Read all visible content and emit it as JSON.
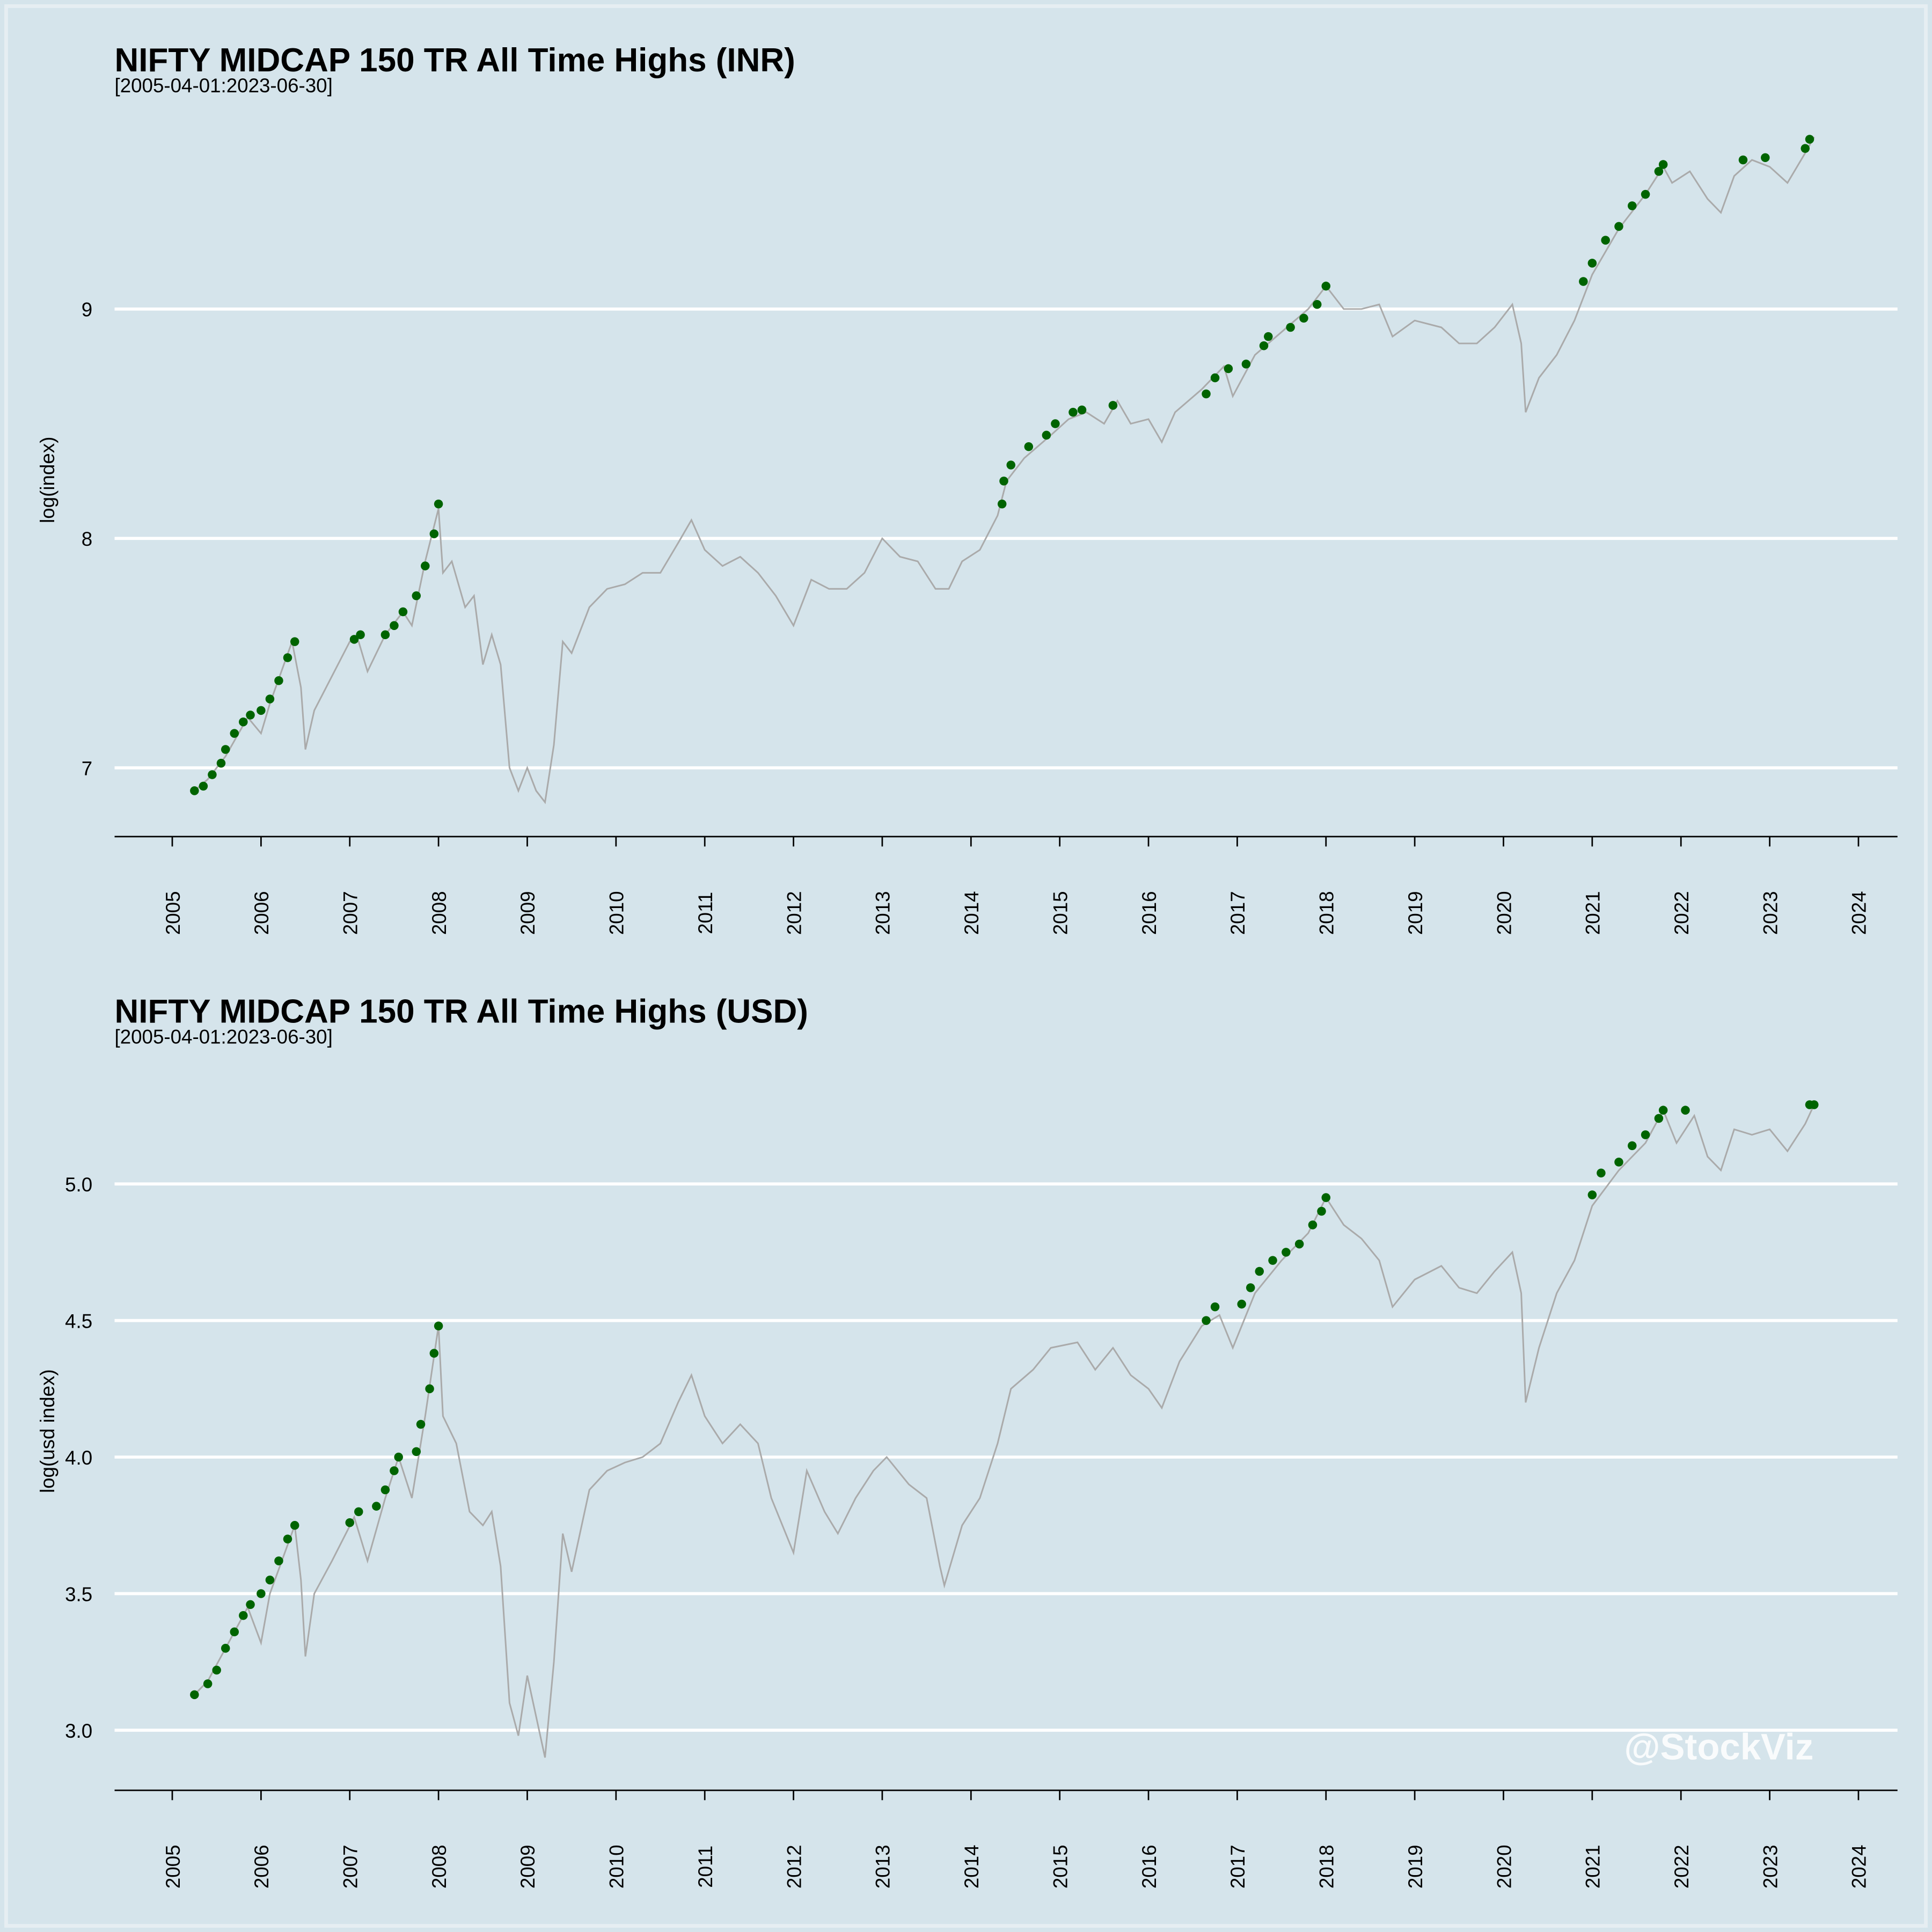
{
  "chart_data": [
    {
      "type": "line",
      "title": "NIFTY MIDCAP 150 TR All Time Highs (INR)",
      "subtitle": "[2005-04-01:2023-06-30]",
      "y_label": "log(index)",
      "xlim": [
        2004.35,
        2024.44
      ],
      "xticks": [
        2005,
        2006,
        2007,
        2008,
        2009,
        2010,
        2011,
        2012,
        2013,
        2014,
        2015,
        2016,
        2017,
        2018,
        2019,
        2020,
        2021,
        2022,
        2023,
        2024
      ],
      "ylim": [
        6.7,
        9.81
      ],
      "yticks": [
        7,
        8,
        9
      ],
      "grid": true,
      "series": [
        {
          "color": "#aaaaaa",
          "x": [
            2005.25,
            2005.4,
            2005.6,
            2005.85,
            2006.0,
            2006.1,
            2006.35,
            2006.45,
            2006.5,
            2006.6,
            2006.8,
            2007.0,
            2007.1,
            2007.2,
            2007.4,
            2007.6,
            2007.7,
            2007.85,
            2008.0,
            2008.05,
            2008.15,
            2008.3,
            2008.4,
            2008.5,
            2008.6,
            2008.7,
            2008.8,
            2008.9,
            2009.0,
            2009.1,
            2009.2,
            2009.3,
            2009.4,
            2009.5,
            2009.7,
            2009.9,
            2010.1,
            2010.3,
            2010.5,
            2010.7,
            2010.85,
            2011.0,
            2011.2,
            2011.4,
            2011.6,
            2011.8,
            2012.0,
            2012.2,
            2012.4,
            2012.6,
            2012.8,
            2013.0,
            2013.2,
            2013.4,
            2013.6,
            2013.75,
            2013.9,
            2014.1,
            2014.3,
            2014.4,
            2014.6,
            2014.9,
            2015.1,
            2015.3,
            2015.5,
            2015.65,
            2015.8,
            2016.0,
            2016.15,
            2016.3,
            2016.6,
            2016.85,
            2016.95,
            2017.2,
            2017.5,
            2017.8,
            2018.0,
            2018.2,
            2018.4,
            2018.6,
            2018.75,
            2019.0,
            2019.3,
            2019.5,
            2019.7,
            2019.9,
            2020.1,
            2020.2,
            2020.25,
            2020.4,
            2020.6,
            2020.8,
            2021.0,
            2021.3,
            2021.6,
            2021.8,
            2021.9,
            2022.1,
            2022.3,
            2022.45,
            2022.6,
            2022.8,
            2023.0,
            2023.2,
            2023.4,
            2023.5
          ],
          "values": [
            6.9,
            6.95,
            7.05,
            7.22,
            7.15,
            7.28,
            7.55,
            7.35,
            7.08,
            7.25,
            7.4,
            7.55,
            7.55,
            7.42,
            7.58,
            7.68,
            7.62,
            7.9,
            8.13,
            7.85,
            7.9,
            7.7,
            7.75,
            7.45,
            7.58,
            7.45,
            7.0,
            6.9,
            7.0,
            6.9,
            6.85,
            7.1,
            7.55,
            7.5,
            7.7,
            7.78,
            7.8,
            7.85,
            7.85,
            7.98,
            8.08,
            7.95,
            7.88,
            7.92,
            7.85,
            7.75,
            7.62,
            7.82,
            7.78,
            7.78,
            7.85,
            8.0,
            7.92,
            7.9,
            7.78,
            7.78,
            7.9,
            7.95,
            8.1,
            8.25,
            8.35,
            8.45,
            8.52,
            8.55,
            8.5,
            8.6,
            8.5,
            8.52,
            8.42,
            8.55,
            8.65,
            8.75,
            8.62,
            8.8,
            8.9,
            9.0,
            9.1,
            9.0,
            9.0,
            9.02,
            8.88,
            8.95,
            8.92,
            8.85,
            8.85,
            8.92,
            9.02,
            8.85,
            8.55,
            8.7,
            8.8,
            8.95,
            9.15,
            9.35,
            9.5,
            9.62,
            9.55,
            9.6,
            9.48,
            9.42,
            9.58,
            9.65,
            9.62,
            9.55,
            9.68,
            9.75
          ]
        },
        {
          "color": "#006400",
          "marker": "point",
          "x": [
            2005.25,
            2005.35,
            2005.45,
            2005.55,
            2005.6,
            2005.7,
            2005.8,
            2005.88,
            2006.0,
            2006.1,
            2006.2,
            2006.3,
            2006.38,
            2007.05,
            2007.12,
            2007.4,
            2007.5,
            2007.6,
            2007.75,
            2007.85,
            2007.95,
            2008.0,
            2014.35,
            2014.37,
            2014.45,
            2014.65,
            2014.85,
            2014.95,
            2015.15,
            2015.25,
            2015.6,
            2016.65,
            2016.75,
            2016.9,
            2017.1,
            2017.3,
            2017.35,
            2017.6,
            2017.75,
            2017.9,
            2018.0,
            2020.9,
            2021.0,
            2021.15,
            2021.3,
            2021.45,
            2021.6,
            2021.75,
            2021.8,
            2022.7,
            2022.95,
            2023.4,
            2023.45
          ],
          "values": [
            6.9,
            6.92,
            6.97,
            7.02,
            7.08,
            7.15,
            7.2,
            7.23,
            7.25,
            7.3,
            7.38,
            7.48,
            7.55,
            7.56,
            7.58,
            7.58,
            7.62,
            7.68,
            7.75,
            7.88,
            8.02,
            8.15,
            8.15,
            8.25,
            8.32,
            8.4,
            8.45,
            8.5,
            8.55,
            8.56,
            8.58,
            8.63,
            8.7,
            8.74,
            8.76,
            8.84,
            8.88,
            8.92,
            8.96,
            9.02,
            9.1,
            9.12,
            9.2,
            9.3,
            9.36,
            9.45,
            9.5,
            9.6,
            9.63,
            9.65,
            9.66,
            9.7,
            9.74
          ]
        }
      ]
    },
    {
      "type": "line",
      "title": "NIFTY MIDCAP 150 TR All Time Highs (USD)",
      "subtitle": "[2005-04-01:2023-06-30]",
      "y_label": "log(usd index)",
      "watermark": "@StockViz",
      "xlim": [
        2004.35,
        2024.44
      ],
      "xticks": [
        2005,
        2006,
        2007,
        2008,
        2009,
        2010,
        2011,
        2012,
        2013,
        2014,
        2015,
        2016,
        2017,
        2018,
        2019,
        2020,
        2021,
        2022,
        2023,
        2024
      ],
      "ylim": [
        2.78,
        5.41
      ],
      "yticks": [
        {
          "value": 3,
          "label": "3.0"
        },
        3.5,
        {
          "value": 4,
          "label": "4.0"
        },
        4.5,
        {
          "value": 5,
          "label": "5.0"
        }
      ],
      "grid": true,
      "series": [
        {
          "color": "#aaaaaa",
          "x": [
            2005.25,
            2005.4,
            2005.6,
            2005.85,
            2006.0,
            2006.1,
            2006.38,
            2006.45,
            2006.5,
            2006.6,
            2006.8,
            2007.05,
            2007.2,
            2007.4,
            2007.55,
            2007.7,
            2007.85,
            2008.0,
            2008.05,
            2008.2,
            2008.35,
            2008.5,
            2008.6,
            2008.7,
            2008.8,
            2008.9,
            2009.0,
            2009.1,
            2009.2,
            2009.3,
            2009.4,
            2009.5,
            2009.7,
            2009.9,
            2010.1,
            2010.3,
            2010.5,
            2010.7,
            2010.85,
            2011.0,
            2011.2,
            2011.4,
            2011.6,
            2011.75,
            2012.0,
            2012.15,
            2012.35,
            2012.5,
            2012.7,
            2012.9,
            2013.05,
            2013.3,
            2013.5,
            2013.65,
            2013.7,
            2013.9,
            2014.1,
            2014.3,
            2014.45,
            2014.7,
            2014.9,
            2015.2,
            2015.4,
            2015.6,
            2015.8,
            2016.0,
            2016.15,
            2016.35,
            2016.6,
            2016.8,
            2016.95,
            2017.2,
            2017.5,
            2017.8,
            2018.0,
            2018.2,
            2018.4,
            2018.6,
            2018.75,
            2019.0,
            2019.3,
            2019.5,
            2019.7,
            2019.9,
            2020.1,
            2020.2,
            2020.25,
            2020.4,
            2020.6,
            2020.8,
            2021.0,
            2021.3,
            2021.6,
            2021.8,
            2021.95,
            2022.15,
            2022.3,
            2022.45,
            2022.6,
            2022.8,
            2023.0,
            2023.2,
            2023.4,
            2023.5
          ],
          "values": [
            3.13,
            3.18,
            3.3,
            3.45,
            3.32,
            3.5,
            3.75,
            3.55,
            3.27,
            3.5,
            3.62,
            3.78,
            3.62,
            3.85,
            4.0,
            3.85,
            4.15,
            4.48,
            4.15,
            4.05,
            3.8,
            3.75,
            3.8,
            3.6,
            3.1,
            2.98,
            3.2,
            3.05,
            2.9,
            3.25,
            3.72,
            3.58,
            3.88,
            3.95,
            3.98,
            4.0,
            4.05,
            4.2,
            4.3,
            4.15,
            4.05,
            4.12,
            4.05,
            3.85,
            3.65,
            3.95,
            3.8,
            3.72,
            3.85,
            3.95,
            4.0,
            3.9,
            3.85,
            3.6,
            3.53,
            3.75,
            3.85,
            4.05,
            4.25,
            4.32,
            4.4,
            4.42,
            4.32,
            4.4,
            4.3,
            4.25,
            4.18,
            4.35,
            4.48,
            4.52,
            4.4,
            4.6,
            4.72,
            4.82,
            4.95,
            4.85,
            4.8,
            4.72,
            4.55,
            4.65,
            4.7,
            4.62,
            4.6,
            4.68,
            4.75,
            4.6,
            4.2,
            4.4,
            4.6,
            4.72,
            4.92,
            5.05,
            5.15,
            5.27,
            5.15,
            5.25,
            5.1,
            5.05,
            5.2,
            5.18,
            5.2,
            5.12,
            5.22,
            5.29
          ]
        },
        {
          "color": "#006400",
          "marker": "point",
          "x": [
            2005.25,
            2005.4,
            2005.5,
            2005.6,
            2005.7,
            2005.8,
            2005.88,
            2006.0,
            2006.1,
            2006.2,
            2006.3,
            2006.38,
            2007.0,
            2007.1,
            2007.3,
            2007.4,
            2007.5,
            2007.55,
            2007.75,
            2007.8,
            2007.9,
            2007.95,
            2008.0,
            2016.65,
            2016.75,
            2017.05,
            2017.15,
            2017.25,
            2017.4,
            2017.55,
            2017.7,
            2017.85,
            2017.95,
            2018.0,
            2021.0,
            2021.1,
            2021.3,
            2021.45,
            2021.6,
            2021.75,
            2021.8,
            2022.05,
            2023.45,
            2023.5
          ],
          "values": [
            3.13,
            3.17,
            3.22,
            3.3,
            3.36,
            3.42,
            3.46,
            3.5,
            3.55,
            3.62,
            3.7,
            3.75,
            3.76,
            3.8,
            3.82,
            3.88,
            3.95,
            4.0,
            4.02,
            4.12,
            4.25,
            4.38,
            4.48,
            4.5,
            4.55,
            4.56,
            4.62,
            4.68,
            4.72,
            4.75,
            4.78,
            4.85,
            4.9,
            4.95,
            4.96,
            5.04,
            5.08,
            5.14,
            5.18,
            5.24,
            5.27,
            5.27,
            5.29,
            5.29
          ]
        }
      ]
    }
  ]
}
